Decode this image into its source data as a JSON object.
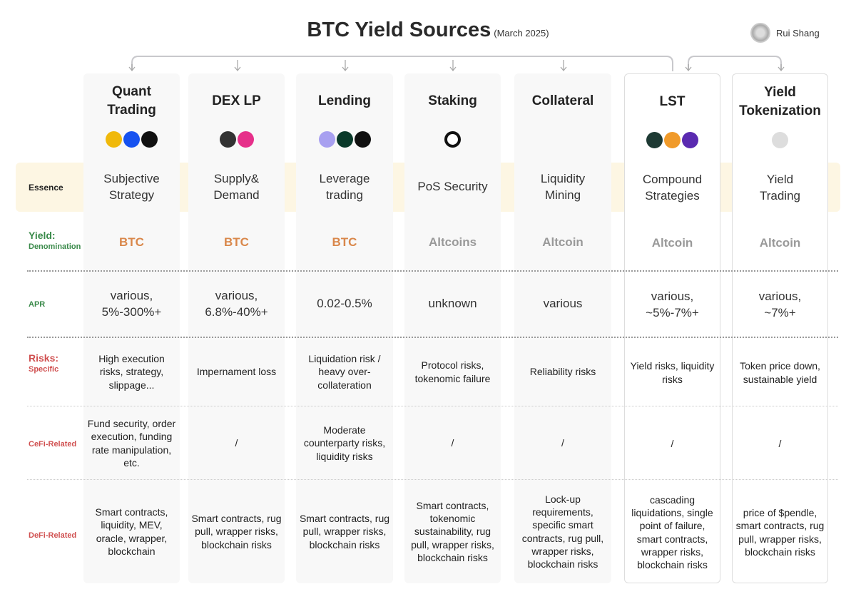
{
  "title": "BTC Yield Sources",
  "subtitle": "(March 2025)",
  "author": "Rui Shang",
  "row_labels": {
    "essence": "Essence",
    "yield": "Yield:",
    "denomination": "Denomination",
    "apr": "APR",
    "risks": "Risks:",
    "specific": "Specific",
    "cefi": "CeFi-Related",
    "defi": "DeFi-Related"
  },
  "colors": {
    "btc": "#d9874a",
    "altcoin": "#999999",
    "green": "#3a8a4a",
    "red": "#d05050",
    "band": "#fdf6e3"
  },
  "columns": [
    {
      "name": "Quant Trading",
      "icons": [
        "binance-icon",
        "coinbase-icon",
        "okx-icon"
      ],
      "essence": "Subjective Strategy",
      "denomination": "BTC",
      "apr": "various, 5%-300%+",
      "specific": "High execution risks, strategy, slippage...",
      "cefi": "Fund security, order execution, funding rate manipulation, etc.",
      "defi": "Smart contracts, liquidity, MEV, oracle, wrapper, blockchain"
    },
    {
      "name": "DEX LP",
      "icons": [
        "dex-icon",
        "pancake-icon"
      ],
      "essence": "Supply& Demand",
      "denomination": "BTC",
      "apr": "various, 6.8%-40%+",
      "specific": "Impernament loss",
      "cefi": "/",
      "defi": "Smart contracts, rug pull, wrapper risks, blockchain risks"
    },
    {
      "name": "Lending",
      "icons": [
        "morpho-icon",
        "compound-icon",
        "aave-icon"
      ],
      "essence": "Leverage trading",
      "denomination": "BTC",
      "apr": "0.02-0.5%",
      "specific": "Liquidation risk / heavy over-collateration",
      "cefi": "Moderate counterparty risks, liquidity risks",
      "defi": "Smart contracts, rug pull, wrapper risks, blockchain risks"
    },
    {
      "name": "Staking",
      "icons": [
        "core-icon"
      ],
      "essence": "PoS Security",
      "denomination": "Altcoins",
      "apr": "unknown",
      "specific": "Protocol risks, tokenomic failure",
      "cefi": "/",
      "defi": "Smart contracts, tokenomic sustainability, rug pull, wrapper risks, blockchain risks"
    },
    {
      "name": "Collateral",
      "icons": [],
      "essence": "Liquidity Mining",
      "denomination": "Altcoin",
      "apr": "various",
      "specific": "Reliability risks",
      "cefi": "/",
      "defi": "Lock-up requirements, specific smart contracts, rug pull, wrapper risks, blockchain risks"
    },
    {
      "name": "LST",
      "icons": [
        "bedrock-icon",
        "solv-icon",
        "lombard-icon"
      ],
      "essence": "Compound Strategies",
      "denomination": "Altcoin",
      "apr": "various, ~5%-7%+",
      "specific": "Yield risks, liquidity risks",
      "cefi": "/",
      "defi": "cascading liquidations, single point of failure, smart contracts, wrapper risks, blockchain risks"
    },
    {
      "name": "Yield Tokenization",
      "icons": [
        "pendle-icon"
      ],
      "essence": "Yield Trading",
      "denomination": "Altcoin",
      "apr": "various, ~7%+",
      "specific": "Token price down, sustainable yield",
      "cefi": "/",
      "defi": "price of $pendle, smart contracts, rug pull, wrapper risks, blockchain risks"
    }
  ]
}
